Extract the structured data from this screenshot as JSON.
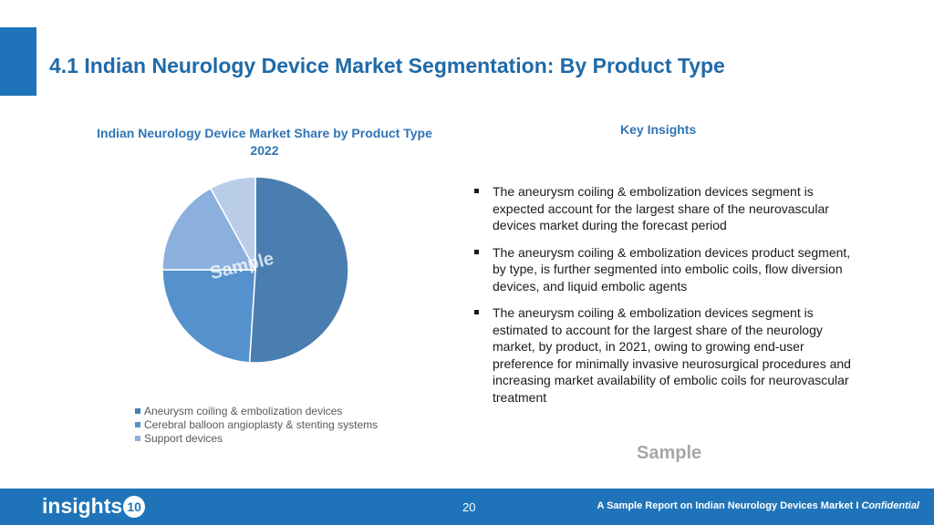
{
  "slide": {
    "title": "4.1 Indian Neurology Device Market Segmentation: By Product Type"
  },
  "colors": {
    "accent": "#1f74b9",
    "heading": "#2f75b5"
  },
  "chart_data": {
    "type": "pie",
    "title_line1": "Indian Neurology Device Market Share by Product Type",
    "title_line2": "2022",
    "categories": [
      "Aneurysm coiling & embolization devices",
      "Cerebral balloon angioplasty & stenting systems",
      "Support devices",
      "",
      ""
    ],
    "values": [
      51,
      24,
      17,
      8,
      0
    ],
    "colors": [
      "#4a7eb0",
      "#5591cc",
      "#8cb0dd",
      "#b9cde9",
      "#d6e2f2"
    ],
    "legend_position": "bottom",
    "watermark": "Sample"
  },
  "insights": {
    "heading": "Key Insights",
    "bullets": [
      "The aneurysm coiling & embolization devices segment is expected account for the largest share of the neurovascular devices market during the forecast period",
      "The aneurysm coiling & embolization devices product segment, by type, is further segmented into embolic coils, flow diversion devices, and liquid embolic agents",
      "The aneurysm coiling & embolization devices segment is estimated to account for the largest share of the neurology market, by product, in 2021, owing to growing end-user preference for minimally invasive neurosurgical procedures and increasing market availability of embolic coils for neurovascular treatment"
    ],
    "watermark": "Sample"
  },
  "footer": {
    "logo_text": "insights",
    "logo_badge": "10",
    "page_number": "20",
    "note_text": "A Sample Report on Indian Neurology Devices Market I ",
    "note_italic": "Confidential"
  }
}
